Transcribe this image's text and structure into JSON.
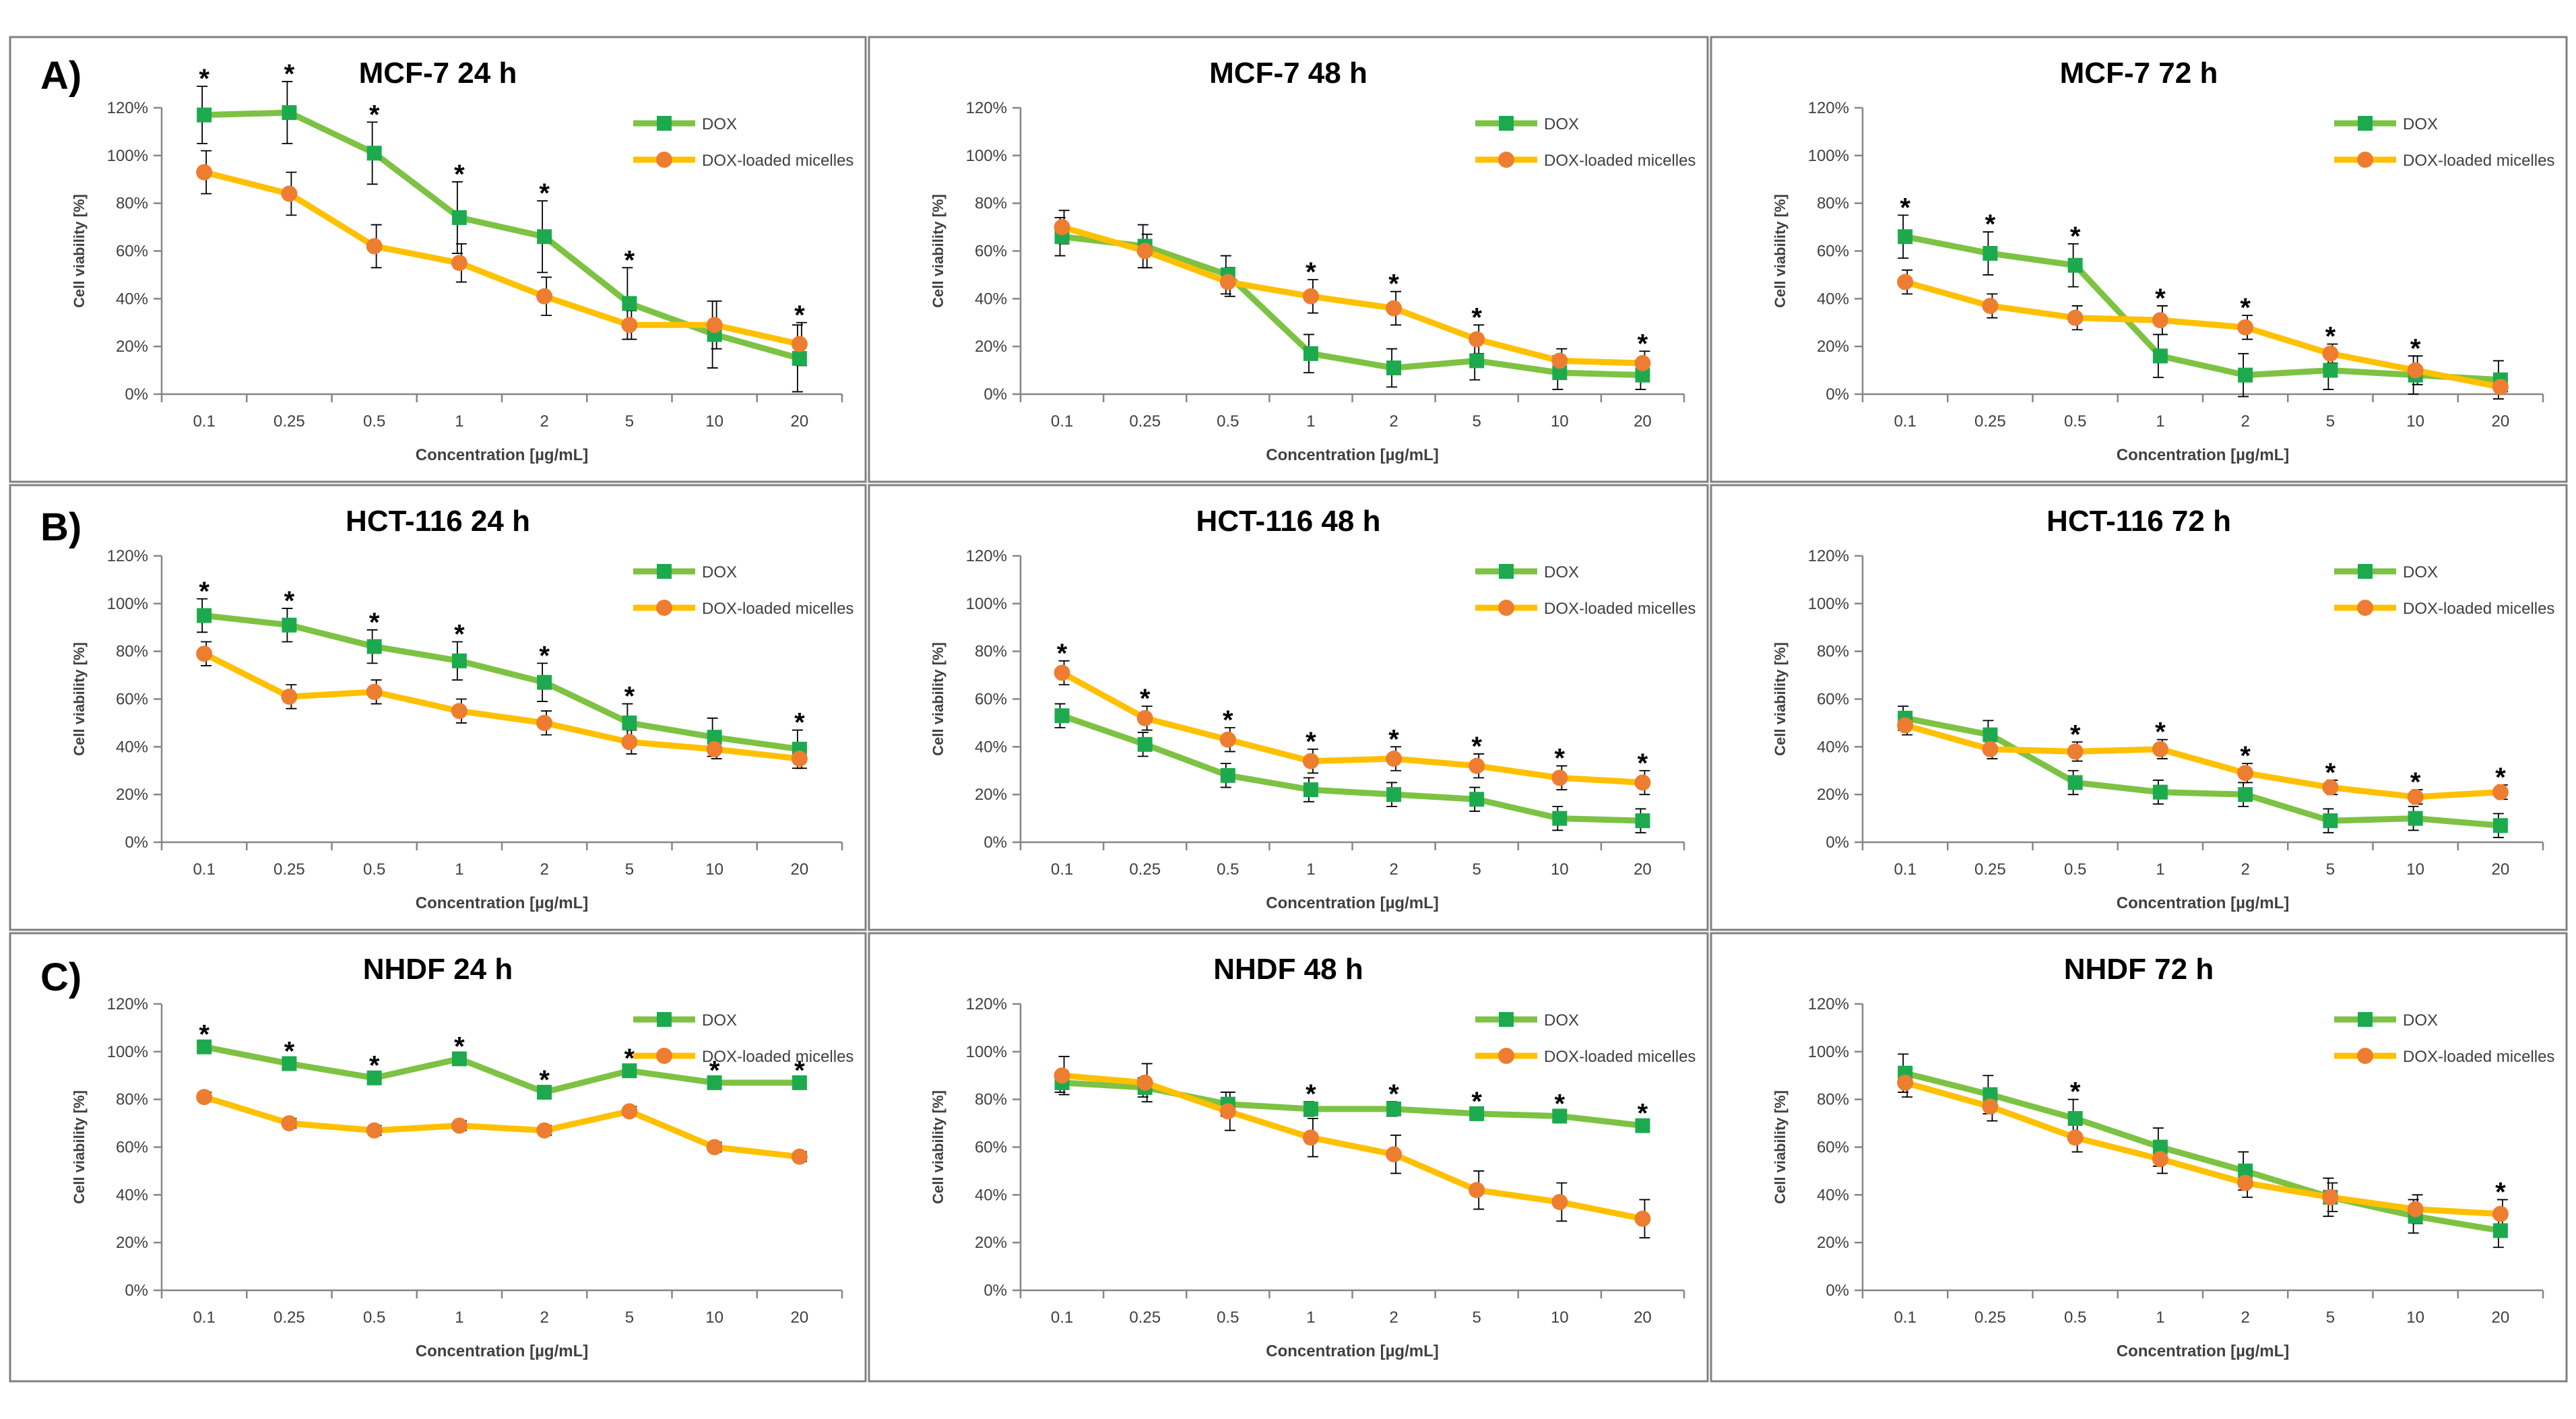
{
  "figure": {
    "row_labels": [
      "A)",
      "B)",
      "C)"
    ]
  },
  "colors": {
    "dox": "#7DC242",
    "dox_marker": "#1DAA4E",
    "micelles": "#FFC000",
    "micelles_marker": "#ED7D31",
    "error_bar": "#000000",
    "axis": "#868686",
    "panel_border": "#808080"
  },
  "chart_data": [
    {
      "type": "line",
      "title": "MCF-7  24 h",
      "xlabel": "Concentration [µg/mL]",
      "ylabel": "Cell viability [%]",
      "categories": [
        "0.1",
        "0.25",
        "0.5",
        "1",
        "2",
        "5",
        "10",
        "20"
      ],
      "ylim": [
        0,
        120
      ],
      "yticks": [
        "0%",
        "20%",
        "40%",
        "60%",
        "80%",
        "100%",
        "120%"
      ],
      "legend": [
        "DOX",
        "DOX-loaded micelles"
      ],
      "series": [
        {
          "name": "DOX",
          "values": [
            117,
            118,
            101,
            74,
            66,
            38,
            25,
            15
          ],
          "errors": [
            12,
            13,
            13,
            15,
            15,
            15,
            14,
            14
          ]
        },
        {
          "name": "DOX-loaded micelles",
          "values": [
            93,
            84,
            62,
            55,
            41,
            29,
            29,
            21
          ],
          "errors": [
            9,
            9,
            9,
            8,
            8,
            6,
            10,
            9
          ]
        }
      ],
      "significance": [
        true,
        true,
        true,
        true,
        true,
        true,
        false,
        true
      ]
    },
    {
      "type": "line",
      "title": "MCF-7  48 h",
      "xlabel": "Concentration [µg/mL]",
      "ylabel": "Cell viability [%]",
      "categories": [
        "0.1",
        "0.25",
        "0.5",
        "1",
        "2",
        "5",
        "10",
        "20"
      ],
      "ylim": [
        0,
        120
      ],
      "yticks": [
        "0%",
        "20%",
        "40%",
        "60%",
        "80%",
        "100%",
        "120%"
      ],
      "legend": [
        "DOX",
        "DOX-loaded micelles"
      ],
      "series": [
        {
          "name": "DOX",
          "values": [
            66,
            62,
            50,
            17,
            11,
            14,
            9,
            8
          ],
          "errors": [
            8,
            9,
            8,
            8,
            8,
            8,
            7,
            6
          ]
        },
        {
          "name": "DOX-loaded micelles",
          "values": [
            70,
            60,
            47,
            41,
            36,
            23,
            14,
            13
          ],
          "errors": [
            7,
            7,
            6,
            7,
            7,
            6,
            5,
            5
          ]
        }
      ],
      "significance": [
        false,
        false,
        false,
        true,
        true,
        true,
        false,
        true
      ]
    },
    {
      "type": "line",
      "title": "MCF-7  72 h",
      "xlabel": "Concentration [µg/mL]",
      "ylabel": "Cell viability [%]",
      "categories": [
        "0.1",
        "0.25",
        "0.5",
        "1",
        "2",
        "5",
        "10",
        "20"
      ],
      "ylim": [
        0,
        120
      ],
      "yticks": [
        "0%",
        "20%",
        "40%",
        "60%",
        "80%",
        "100%",
        "120%"
      ],
      "legend": [
        "DOX",
        "DOX-loaded micelles"
      ],
      "series": [
        {
          "name": "DOX",
          "values": [
            66,
            59,
            54,
            16,
            8,
            10,
            8,
            6
          ],
          "errors": [
            9,
            9,
            9,
            9,
            9,
            8,
            8,
            8
          ]
        },
        {
          "name": "DOX-loaded micelles",
          "values": [
            47,
            37,
            32,
            31,
            28,
            17,
            10,
            3
          ],
          "errors": [
            5,
            5,
            5,
            6,
            5,
            4,
            6,
            2
          ]
        }
      ],
      "significance": [
        true,
        true,
        true,
        true,
        true,
        true,
        true,
        false
      ]
    },
    {
      "type": "line",
      "title": "HCT-116  24 h",
      "xlabel": "Concentration [µg/mL]",
      "ylabel": "Cell viability [%]",
      "categories": [
        "0.1",
        "0.25",
        "0.5",
        "1",
        "2",
        "5",
        "10",
        "20"
      ],
      "ylim": [
        0,
        120
      ],
      "yticks": [
        "0%",
        "20%",
        "40%",
        "60%",
        "80%",
        "100%",
        "120%"
      ],
      "legend": [
        "DOX",
        "DOX-loaded micelles"
      ],
      "series": [
        {
          "name": "DOX",
          "values": [
            95,
            91,
            82,
            76,
            67,
            50,
            44,
            39
          ],
          "errors": [
            7,
            7,
            7,
            8,
            8,
            8,
            8,
            8
          ]
        },
        {
          "name": "DOX-loaded micelles",
          "values": [
            79,
            61,
            63,
            55,
            50,
            42,
            39,
            35
          ],
          "errors": [
            5,
            5,
            5,
            5,
            5,
            5,
            4,
            4
          ]
        }
      ],
      "significance": [
        true,
        true,
        true,
        true,
        true,
        true,
        false,
        true
      ]
    },
    {
      "type": "line",
      "title": "HCT-116  48 h",
      "xlabel": "Concentration [µg/mL]",
      "ylabel": "Cell viability [%]",
      "categories": [
        "0.1",
        "0.25",
        "0.5",
        "1",
        "2",
        "5",
        "10",
        "20"
      ],
      "ylim": [
        0,
        120
      ],
      "yticks": [
        "0%",
        "20%",
        "40%",
        "60%",
        "80%",
        "100%",
        "120%"
      ],
      "legend": [
        "DOX",
        "DOX-loaded micelles"
      ],
      "series": [
        {
          "name": "DOX",
          "values": [
            53,
            41,
            28,
            22,
            20,
            18,
            10,
            9
          ],
          "errors": [
            5,
            5,
            5,
            5,
            5,
            5,
            5,
            5
          ]
        },
        {
          "name": "DOX-loaded micelles",
          "values": [
            71,
            52,
            43,
            34,
            35,
            32,
            27,
            25
          ],
          "errors": [
            5,
            5,
            5,
            5,
            5,
            5,
            5,
            5
          ]
        }
      ],
      "significance": [
        true,
        true,
        true,
        true,
        true,
        true,
        true,
        true
      ]
    },
    {
      "type": "line",
      "title": "HCT-116  72 h",
      "xlabel": "Concentration [µg/mL]",
      "ylabel": "Cell viability [%]",
      "categories": [
        "0.1",
        "0.25",
        "0.5",
        "1",
        "2",
        "5",
        "10",
        "20"
      ],
      "ylim": [
        0,
        120
      ],
      "yticks": [
        "0%",
        "20%",
        "40%",
        "60%",
        "80%",
        "100%",
        "120%"
      ],
      "legend": [
        "DOX",
        "DOX-loaded micelles"
      ],
      "series": [
        {
          "name": "DOX",
          "values": [
            52,
            45,
            25,
            21,
            20,
            9,
            10,
            7
          ],
          "errors": [
            5,
            6,
            5,
            5,
            5,
            5,
            5,
            5
          ]
        },
        {
          "name": "DOX-loaded micelles",
          "values": [
            49,
            39,
            38,
            39,
            29,
            23,
            19,
            21
          ],
          "errors": [
            4,
            4,
            4,
            4,
            4,
            3,
            3,
            3
          ]
        }
      ],
      "significance": [
        false,
        false,
        true,
        true,
        true,
        true,
        true,
        true
      ]
    },
    {
      "type": "line",
      "title": "NHDF  24 h",
      "xlabel": "Concentration [µg/mL]",
      "ylabel": "Cell viability [%]",
      "categories": [
        "0.1",
        "0.25",
        "0.5",
        "1",
        "2",
        "5",
        "10",
        "20"
      ],
      "ylim": [
        0,
        120
      ],
      "yticks": [
        "0%",
        "20%",
        "40%",
        "60%",
        "80%",
        "100%",
        "120%"
      ],
      "legend": [
        "DOX",
        "DOX-loaded micelles"
      ],
      "series": [
        {
          "name": "DOX",
          "values": [
            102,
            95,
            89,
            97,
            83,
            92,
            87,
            87
          ],
          "errors": [
            2,
            2,
            2,
            2,
            2,
            2,
            2,
            2
          ]
        },
        {
          "name": "DOX-loaded micelles",
          "values": [
            81,
            70,
            67,
            69,
            67,
            75,
            60,
            56
          ],
          "errors": [
            2,
            2,
            2,
            2,
            2,
            2,
            2,
            2
          ]
        }
      ],
      "significance": [
        true,
        true,
        true,
        true,
        true,
        true,
        true,
        true
      ]
    },
    {
      "type": "line",
      "title": "NHDF  48 h",
      "xlabel": "Concentration [µg/mL]",
      "ylabel": "Cell viability [%]",
      "categories": [
        "0.1",
        "0.25",
        "0.5",
        "1",
        "2",
        "5",
        "10",
        "20"
      ],
      "ylim": [
        0,
        120
      ],
      "yticks": [
        "0%",
        "20%",
        "40%",
        "60%",
        "80%",
        "100%",
        "120%"
      ],
      "legend": [
        "DOX",
        "DOX-loaded micelles"
      ],
      "series": [
        {
          "name": "DOX",
          "values": [
            87,
            85,
            78,
            76,
            76,
            74,
            73,
            69
          ],
          "errors": [
            4,
            4,
            5,
            3,
            3,
            2,
            2,
            2
          ]
        },
        {
          "name": "DOX-loaded micelles",
          "values": [
            90,
            87,
            75,
            64,
            57,
            42,
            37,
            30
          ],
          "errors": [
            8,
            8,
            8,
            8,
            8,
            8,
            8,
            8
          ]
        }
      ],
      "significance": [
        false,
        false,
        false,
        true,
        true,
        true,
        true,
        true
      ]
    },
    {
      "type": "line",
      "title": "NHDF  72 h",
      "xlabel": "Concentration [µg/mL]",
      "ylabel": "Cell viability [%]",
      "categories": [
        "0.1",
        "0.25",
        "0.5",
        "1",
        "2",
        "5",
        "10",
        "20"
      ],
      "ylim": [
        0,
        120
      ],
      "yticks": [
        "0%",
        "20%",
        "40%",
        "60%",
        "80%",
        "100%",
        "120%"
      ],
      "legend": [
        "DOX",
        "DOX-loaded micelles"
      ],
      "series": [
        {
          "name": "DOX",
          "values": [
            91,
            82,
            72,
            60,
            50,
            39,
            31,
            25
          ],
          "errors": [
            8,
            8,
            8,
            8,
            8,
            8,
            7,
            7
          ]
        },
        {
          "name": "DOX-loaded micelles",
          "values": [
            87,
            77,
            64,
            55,
            45,
            39,
            34,
            32
          ],
          "errors": [
            6,
            6,
            6,
            6,
            6,
            6,
            6,
            6
          ]
        }
      ],
      "significance": [
        false,
        false,
        true,
        false,
        false,
        false,
        false,
        true
      ]
    }
  ]
}
